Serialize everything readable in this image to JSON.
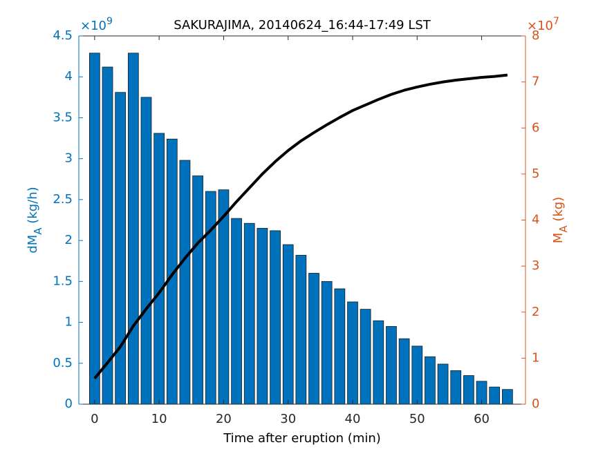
{
  "chart_data": {
    "type": "bar_line",
    "title": "SAKURAJIMA, 20140624_16:44-17:49 LST",
    "xlabel": "Time after eruption (min)",
    "ylabel": [
      "dM",
      "A",
      " (kg/h)"
    ],
    "y2label": [
      "M",
      "A",
      " (kg)"
    ],
    "y_exponent": {
      "base": "×10",
      "power": "9"
    },
    "y2_exponent": {
      "base": "×10",
      "power": "7"
    },
    "x": [
      0,
      2,
      4,
      6,
      8,
      10,
      12,
      14,
      16,
      18,
      20,
      22,
      24,
      26,
      28,
      30,
      32,
      34,
      36,
      38,
      40,
      42,
      44,
      46,
      48,
      50,
      52,
      54,
      56,
      58,
      60,
      62,
      64
    ],
    "series": [
      {
        "name": "dM_A",
        "type": "bar",
        "color": "#0072bd",
        "axis": "y",
        "values": [
          4.29,
          4.12,
          3.81,
          4.29,
          3.75,
          3.31,
          3.24,
          2.98,
          2.79,
          2.6,
          2.62,
          2.27,
          2.21,
          2.15,
          2.12,
          1.95,
          1.82,
          1.6,
          1.5,
          1.41,
          1.25,
          1.16,
          1.02,
          0.95,
          0.8,
          0.71,
          0.58,
          0.49,
          0.41,
          0.35,
          0.28,
          0.21,
          0.18
        ]
      },
      {
        "name": "M_A",
        "type": "line",
        "color": "#000000",
        "axis": "y2",
        "values": [
          0.56,
          0.9,
          1.25,
          1.7,
          2.07,
          2.42,
          2.81,
          3.17,
          3.5,
          3.78,
          4.08,
          4.4,
          4.7,
          5.0,
          5.27,
          5.51,
          5.72,
          5.9,
          6.07,
          6.23,
          6.38,
          6.5,
          6.62,
          6.73,
          6.82,
          6.89,
          6.95,
          7.0,
          7.04,
          7.07,
          7.1,
          7.12,
          7.15
        ]
      }
    ],
    "xlim": [
      -2.45,
      66.8
    ],
    "xticks": [
      0,
      10,
      20,
      30,
      40,
      50,
      60
    ],
    "ylim": [
      0,
      4.5
    ],
    "yticks": [
      0,
      0.5,
      1,
      1.5,
      2,
      2.5,
      3,
      3.5,
      4,
      4.5
    ],
    "y2lim": [
      0,
      8
    ],
    "y2ticks": [
      0,
      1,
      2,
      3,
      4,
      5,
      6,
      7,
      8
    ],
    "ycolor": "#0072bd",
    "y2color": "#d95319"
  }
}
